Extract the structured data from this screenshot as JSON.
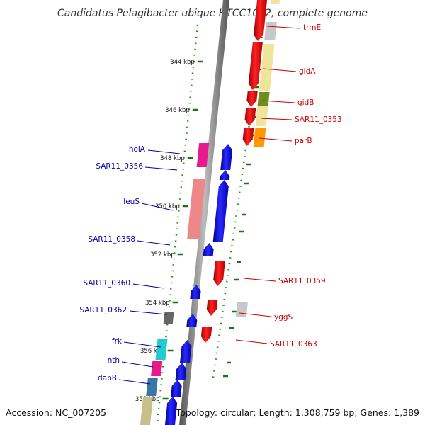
{
  "title": "Candidatus Pelagibacter ubique HTCC1062, complete genome",
  "footer": {
    "accession": "Accession: NC_007205",
    "topology": "Topology: circular; Length: 1,308,759 bp; Genes: 1,389"
  },
  "colors": {
    "backbone": "#8a8a8a",
    "forward_label": "#cc0000",
    "reverse_label": "#0000aa",
    "tick": "#117711",
    "cds_forward": "#ee0000",
    "cds_reverse": "#0000ee"
  },
  "scale_ticks": [
    "344 kbp",
    "346 kbp",
    "348 kbp",
    "350 kbp",
    "352 kbp",
    "354 kbp",
    "356 kbp",
    "358 kbp"
  ],
  "forward_features": [
    {
      "label": "trmE",
      "cog_color": "#c8c8c8"
    },
    {
      "label": "gidA",
      "cog_color": "#eee49a"
    },
    {
      "label": "gidB",
      "cog_color": "#6e8e1e"
    },
    {
      "label": "SAR11_0353",
      "cog_color": "#eee49a"
    },
    {
      "label": "parB",
      "cog_color": "#ff9900"
    },
    {
      "label": "SAR11_0359",
      "cog_color": ""
    },
    {
      "label": "yggS",
      "cog_color": "#c8c8c8"
    },
    {
      "label": "SAR11_0363",
      "cog_color": ""
    }
  ],
  "reverse_features": [
    {
      "label": "holA",
      "cog_color": "#e8198c"
    },
    {
      "label": "SAR11_0356",
      "cog_color": ""
    },
    {
      "label": "leuS",
      "cog_color": "#ee8888"
    },
    {
      "label": "SAR11_0358",
      "cog_color": ""
    },
    {
      "label": "SAR11_0360",
      "cog_color": ""
    },
    {
      "label": "SAR11_0362",
      "cog_color": "#666666"
    },
    {
      "label": "frk",
      "cog_color": "#22cccc"
    },
    {
      "label": "nth",
      "cog_color": "#e8198c"
    },
    {
      "label": "dapB",
      "cog_color": "#3a76a8"
    },
    {
      "label": "",
      "cog_color": "#c8c08a"
    }
  ]
}
